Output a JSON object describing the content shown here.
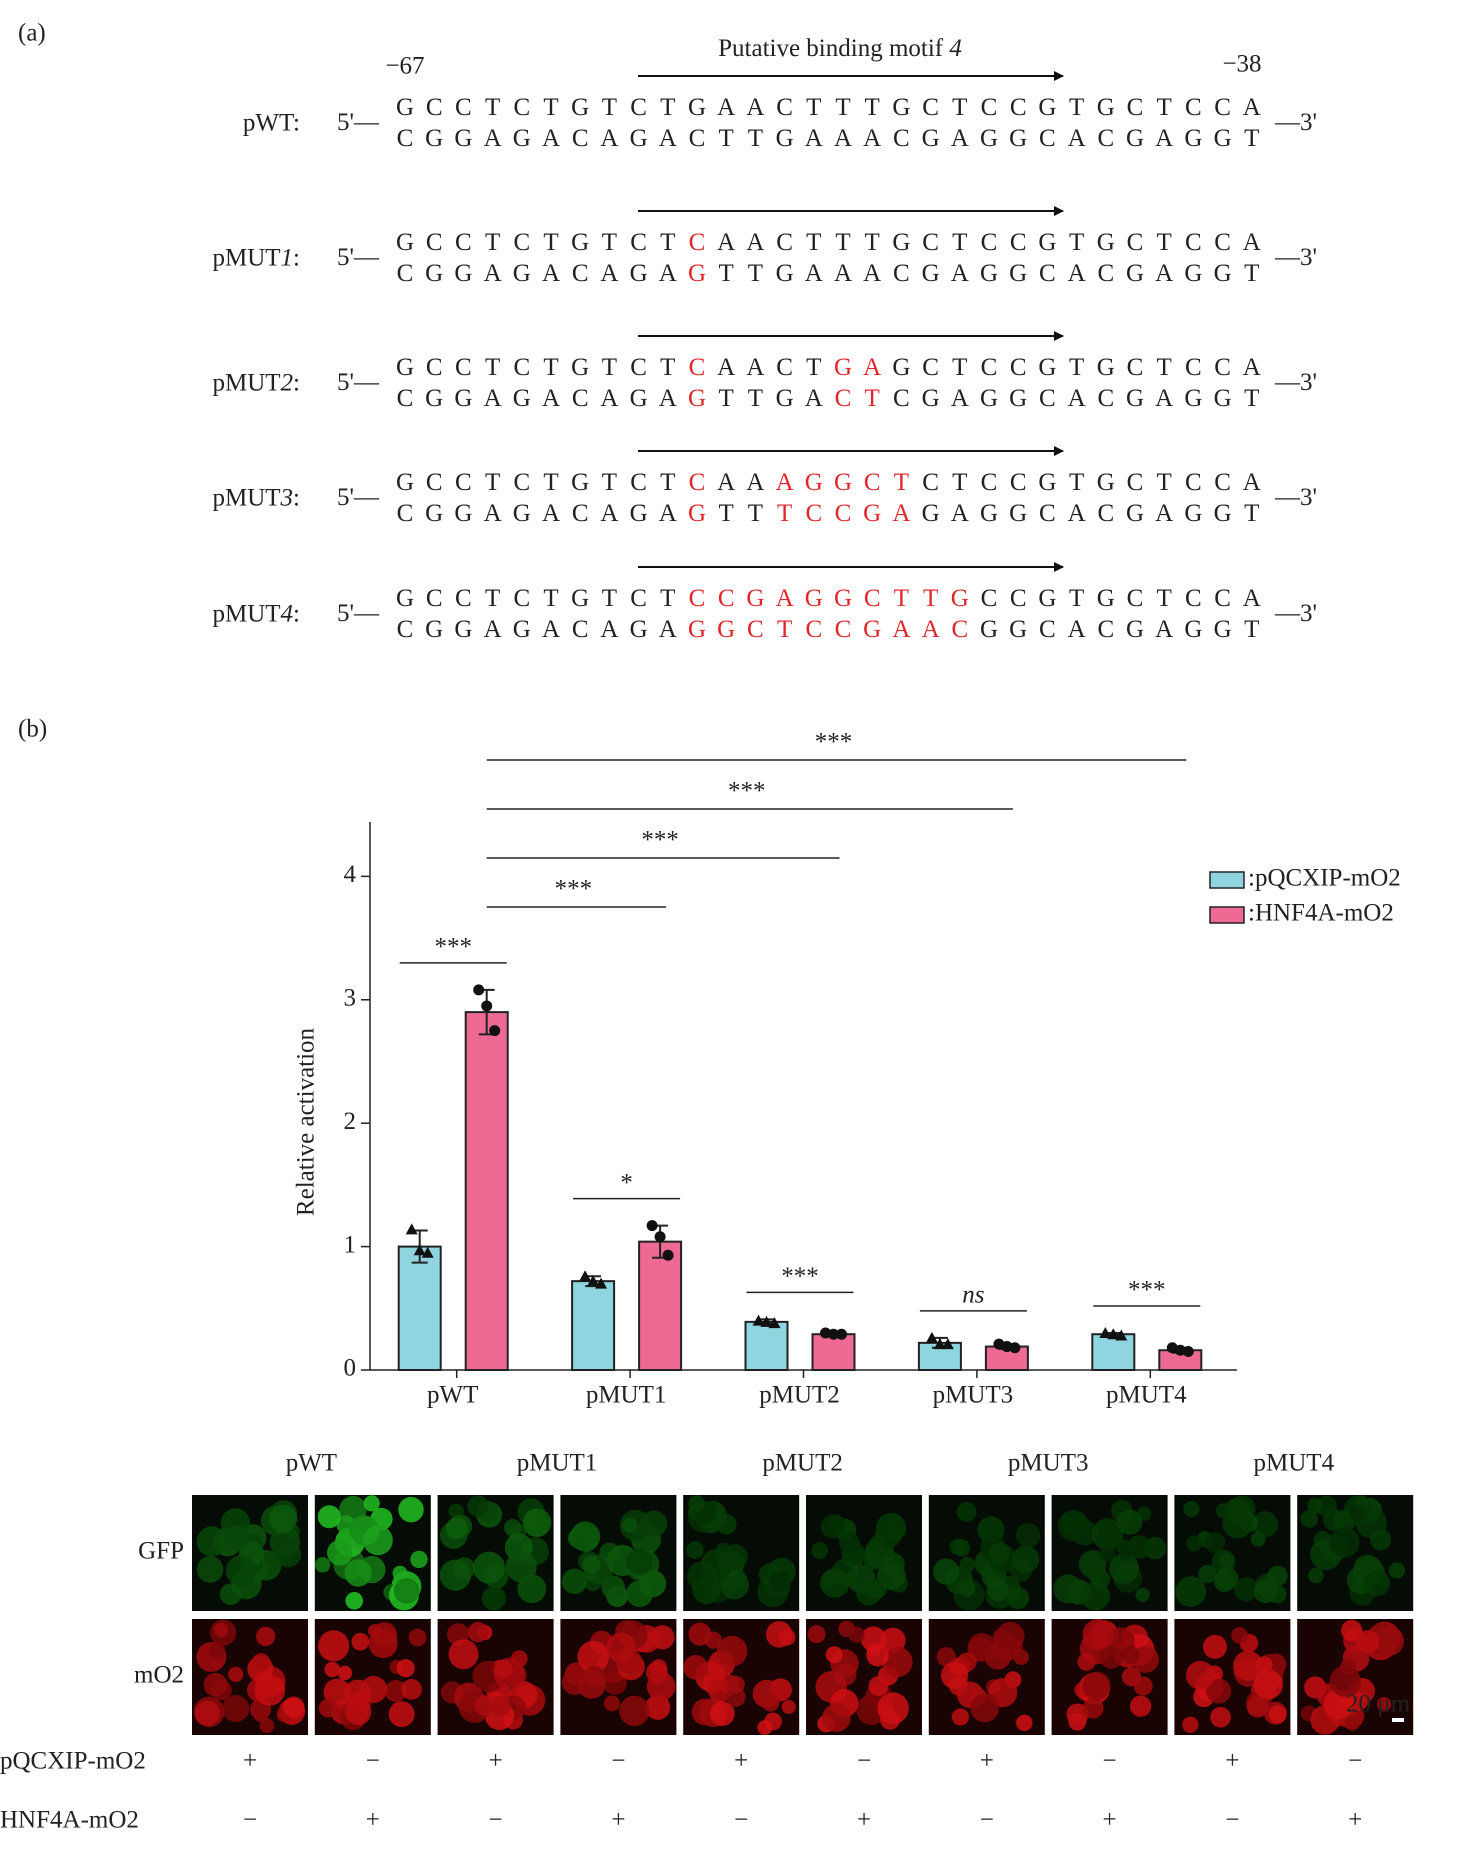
{
  "panel_a": {
    "label": "(a)",
    "motif_title": [
      "Putative binding motif ",
      "4"
    ],
    "start_position": "−67",
    "end_position": "−38",
    "five_prime": "5'—",
    "three_prime": "—3'",
    "rows": [
      {
        "label": [
          "pWT:"
        ],
        "top": [
          {
            "text": "GCCTCTGTCTGAACTTTGCTCCGTGCTCCA",
            "color": "#222222"
          }
        ],
        "bottom": [
          {
            "text": "CGGAGACAGACTTGAAACGAGGCACGAGGT",
            "color": "#222222"
          }
        ]
      },
      {
        "label": [
          "pMUT",
          "1",
          ":"
        ],
        "top": [
          {
            "text": "GCCTCTGTCT",
            "color": "#222222"
          },
          {
            "text": "C",
            "color": "#e0262b"
          },
          {
            "text": "AACTTTGCTCCGTGCTCCA",
            "color": "#222222"
          }
        ],
        "bottom": [
          {
            "text": "CGGAGACAGA",
            "color": "#222222"
          },
          {
            "text": "G",
            "color": "#e0262b"
          },
          {
            "text": "TTGAAACGAGGCACGAGGT",
            "color": "#222222"
          }
        ]
      },
      {
        "label": [
          "pMUT",
          "2",
          ":"
        ],
        "top": [
          {
            "text": "GCCTCTGTCT",
            "color": "#222222"
          },
          {
            "text": "C",
            "color": "#e0262b"
          },
          {
            "text": "AACT",
            "color": "#222222"
          },
          {
            "text": "GA",
            "color": "#e0262b"
          },
          {
            "text": "GCTCCGTGCTCCA",
            "color": "#222222"
          }
        ],
        "bottom": [
          {
            "text": "CGGAGACAGA",
            "color": "#222222"
          },
          {
            "text": "G",
            "color": "#e0262b"
          },
          {
            "text": "TTGA",
            "color": "#222222"
          },
          {
            "text": "CT",
            "color": "#e0262b"
          },
          {
            "text": "CGAGGCACGAGGT",
            "color": "#222222"
          }
        ]
      },
      {
        "label": [
          "pMUT",
          "3",
          ":"
        ],
        "top": [
          {
            "text": "GCCTCTGTCT",
            "color": "#222222"
          },
          {
            "text": "C",
            "color": "#e0262b"
          },
          {
            "text": "AA",
            "color": "#222222"
          },
          {
            "text": "AGGCT",
            "color": "#e0262b"
          },
          {
            "text": "CTCCGTGCTCCA",
            "color": "#222222"
          }
        ],
        "bottom": [
          {
            "text": "CGGAGACAGA",
            "color": "#222222"
          },
          {
            "text": "G",
            "color": "#e0262b"
          },
          {
            "text": "TT",
            "color": "#222222"
          },
          {
            "text": "TCCGA",
            "color": "#e0262b"
          },
          {
            "text": "GAGGCACGAGGT",
            "color": "#222222"
          }
        ]
      },
      {
        "label": [
          "pMUT",
          "4",
          ":"
        ],
        "top": [
          {
            "text": "GCCTCTGTCT",
            "color": "#222222"
          },
          {
            "text": "CCGAGGCTTG",
            "color": "#e0262b"
          },
          {
            "text": "CCGTGCTCCA",
            "color": "#222222"
          }
        ],
        "bottom": [
          {
            "text": "CGGAGACAGA",
            "color": "#222222"
          },
          {
            "text": "GGCTCCGAAC",
            "color": "#e0262b"
          },
          {
            "text": "GGCACGAGGT",
            "color": "#222222"
          }
        ]
      }
    ]
  },
  "panel_b": {
    "label": "(b)"
  },
  "chart_data": {
    "type": "bar",
    "y_label": "Relative activation",
    "categories": [
      "pWT",
      "pMUT1",
      "pMUT2",
      "pMUT3",
      "pMUT4"
    ],
    "ylim": [
      0,
      4.4
    ],
    "yticks": [
      0,
      1,
      2,
      3,
      4
    ],
    "legend": "upper right",
    "series": [
      {
        "name": ":pQCXIP-mO2",
        "color": "#8fd5e0",
        "marker": "triangle",
        "values": [
          1.0,
          0.72,
          0.39,
          0.22,
          0.29
        ],
        "errors": [
          0.13,
          0.04,
          0.02,
          0.04,
          0.01
        ],
        "points": [
          [
            1.14,
            0.97,
            0.95
          ],
          [
            0.76,
            0.72,
            0.7
          ],
          [
            0.4,
            0.39,
            0.38
          ],
          [
            0.26,
            0.21,
            0.21
          ],
          [
            0.3,
            0.29,
            0.28
          ]
        ]
      },
      {
        "name": ":HNF4A-mO2",
        "color": "#ee6a93",
        "marker": "circle",
        "values": [
          2.9,
          1.04,
          0.29,
          0.19,
          0.16
        ],
        "errors": [
          0.18,
          0.13,
          0.01,
          0.02,
          0.02
        ],
        "points": [
          [
            3.08,
            2.95,
            2.75
          ],
          [
            1.17,
            1.08,
            0.93
          ],
          [
            0.3,
            0.29,
            0.29
          ],
          [
            0.21,
            0.19,
            0.18
          ],
          [
            0.18,
            0.16,
            0.15
          ]
        ]
      }
    ],
    "within_labels": [
      "***",
      "*",
      "***",
      "ns",
      "***"
    ],
    "between_labels": [
      null,
      "***",
      "***",
      "***",
      "***"
    ]
  },
  "panel_c": {
    "columns": [
      "pWT",
      "pMUT1",
      "pMUT2",
      "pMUT3",
      "pMUT4"
    ],
    "rows": [
      {
        "name": "GFP",
        "color": "#3aa63a"
      },
      {
        "name": "mO2",
        "color": "#e0262b"
      }
    ],
    "scale_bar": "20 μm",
    "conditions": [
      {
        "name": "pQCXIP-mO2",
        "signs": [
          "+",
          "−",
          "+",
          "−",
          "+",
          "−",
          "+",
          "−",
          "+",
          "−"
        ]
      },
      {
        "name": "HNF4A-mO2",
        "signs": [
          "−",
          "+",
          "−",
          "+",
          "−",
          "+",
          "−",
          "+",
          "−",
          "+"
        ]
      }
    ]
  }
}
